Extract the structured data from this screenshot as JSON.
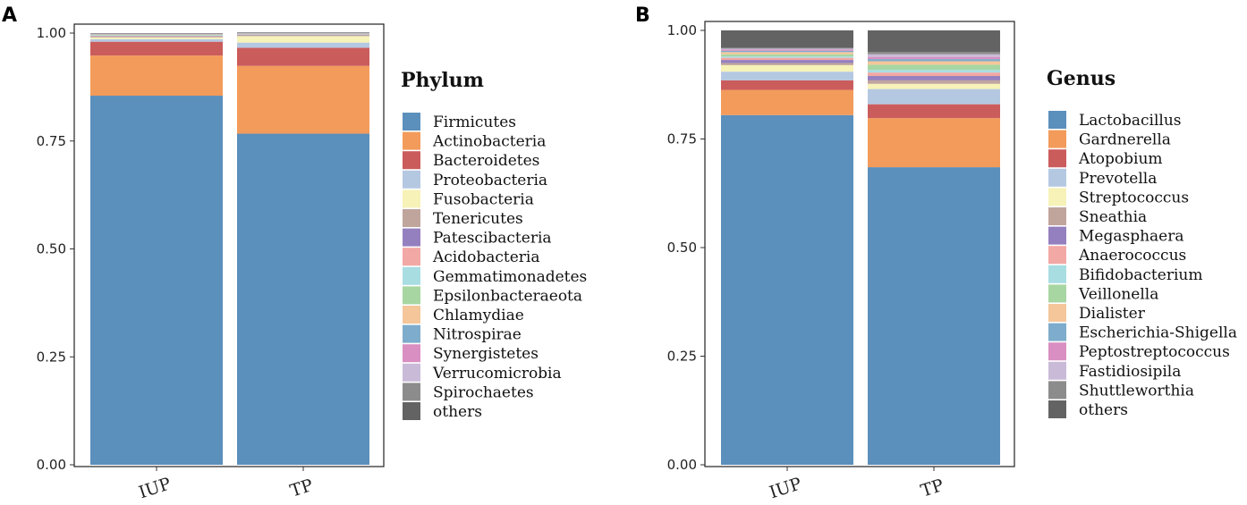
{
  "chart_data": [
    {
      "type": "bar",
      "stacked": true,
      "panel_label": "A",
      "legend_title": "Phylum",
      "categories": [
        "IUP",
        "TP"
      ],
      "ylim": [
        0,
        1
      ],
      "yticks": [
        "0.00",
        "0.25",
        "0.50",
        "0.75",
        "1.00"
      ],
      "series": [
        {
          "name": "Firmicutes",
          "color": "#5b8fbc",
          "values": [
            0.855,
            0.767
          ]
        },
        {
          "name": "Actinobacteria",
          "color": "#f39b5b",
          "values": [
            0.093,
            0.157
          ]
        },
        {
          "name": "Bacteroidetes",
          "color": "#cb5c5c",
          "values": [
            0.032,
            0.042
          ]
        },
        {
          "name": "Proteobacteria",
          "color": "#b5c8e2",
          "values": [
            0.006,
            0.012
          ]
        },
        {
          "name": "Fusobacteria",
          "color": "#f6f2b8",
          "values": [
            0.004,
            0.015
          ]
        },
        {
          "name": "Tenericutes",
          "color": "#c0a59d",
          "values": [
            0.002,
            0.002
          ]
        },
        {
          "name": "Patescibacteria",
          "color": "#9580bf",
          "values": [
            0.001,
            0.001
          ]
        },
        {
          "name": "Acidobacteria",
          "color": "#f2a8a5",
          "values": [
            0.001,
            0.001
          ]
        },
        {
          "name": "Gemmatimonadetes",
          "color": "#a8dde2",
          "values": [
            0.001,
            0.001
          ]
        },
        {
          "name": "Epsilonbacteraeota",
          "color": "#a8d6a2",
          "values": [
            0.001,
            0.001
          ]
        },
        {
          "name": "Chlamydiae",
          "color": "#f4c69a",
          "values": [
            0.001,
            0.0005
          ]
        },
        {
          "name": "Nitrospirae",
          "color": "#7eaccc",
          "values": [
            0.001,
            0.0005
          ]
        },
        {
          "name": "Synergistetes",
          "color": "#d98fc1",
          "values": [
            0.0005,
            0.0005
          ]
        },
        {
          "name": "Verrucomicrobia",
          "color": "#c9bad8",
          "values": [
            0.0005,
            0.0005
          ]
        },
        {
          "name": "Spirochaetes",
          "color": "#8c8c8c",
          "values": [
            0.0005,
            0.0005
          ]
        },
        {
          "name": "others",
          "color": "#636363",
          "values": [
            0.0005,
            0.0005
          ]
        }
      ]
    },
    {
      "type": "bar",
      "stacked": true,
      "panel_label": "B",
      "legend_title": "Genus",
      "categories": [
        "IUP",
        "TP"
      ],
      "ylim": [
        0,
        1
      ],
      "yticks": [
        "0.00",
        "0.25",
        "0.50",
        "0.75",
        "1.00"
      ],
      "series": [
        {
          "name": "Lactobacillus",
          "color": "#5b8fbc",
          "values": [
            0.805,
            0.685
          ]
        },
        {
          "name": "Gardnerella",
          "color": "#f39b5b",
          "values": [
            0.058,
            0.113
          ]
        },
        {
          "name": "Atopobium",
          "color": "#cb5c5c",
          "values": [
            0.022,
            0.032
          ]
        },
        {
          "name": "Prevotella",
          "color": "#b5c8e2",
          "values": [
            0.02,
            0.035
          ]
        },
        {
          "name": "Streptococcus",
          "color": "#f6f2b8",
          "values": [
            0.015,
            0.012
          ]
        },
        {
          "name": "Sneathia",
          "color": "#c0a59d",
          "values": [
            0.005,
            0.008
          ]
        },
        {
          "name": "Megasphaera",
          "color": "#9580bf",
          "values": [
            0.007,
            0.01
          ]
        },
        {
          "name": "Anaerococcus",
          "color": "#f2a8a5",
          "values": [
            0.005,
            0.008
          ]
        },
        {
          "name": "Bifidobacterium",
          "color": "#a8dde2",
          "values": [
            0.003,
            0.006
          ]
        },
        {
          "name": "Veillonella",
          "color": "#a8d6a2",
          "values": [
            0.005,
            0.012
          ]
        },
        {
          "name": "Dialister",
          "color": "#f4c69a",
          "values": [
            0.005,
            0.008
          ]
        },
        {
          "name": "Escherichia-Shigella",
          "color": "#7eaccc",
          "values": [
            0.003,
            0.005
          ]
        },
        {
          "name": "Peptostreptococcus",
          "color": "#d98fc1",
          "values": [
            0.003,
            0.005
          ]
        },
        {
          "name": "Fastidiosipila",
          "color": "#c9bad8",
          "values": [
            0.002,
            0.006
          ]
        },
        {
          "name": "Shuttleworthia",
          "color": "#8c8c8c",
          "values": [
            0.002,
            0.005
          ]
        },
        {
          "name": "others",
          "color": "#636363",
          "values": [
            0.04,
            0.05
          ]
        }
      ]
    }
  ]
}
